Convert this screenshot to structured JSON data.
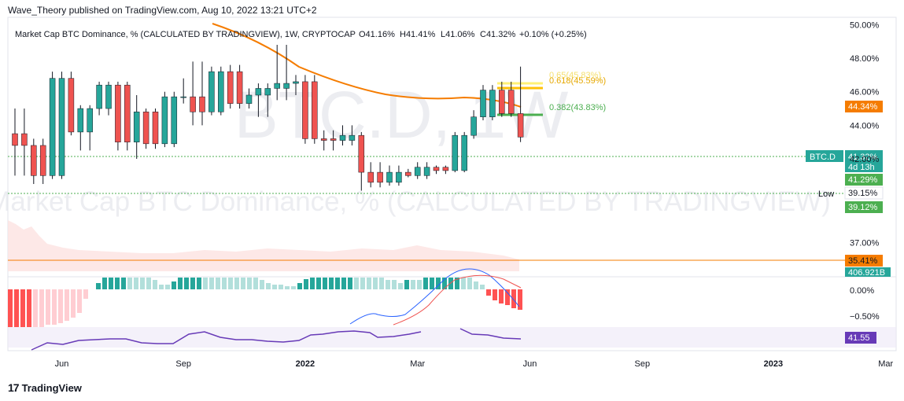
{
  "header": {
    "publisher_line": "Wave_Theory published on TradingView.com, Aug 10, 2022 13:21 UTC+2"
  },
  "legend": {
    "symbol_line": "Market Cap BTC Dominance, % (CALCULATED BY TRADINGVIEW), 1W, CRYPTOCAP",
    "open": "O41.16%",
    "high": "H41.41%",
    "low": "L41.06%",
    "close": "C41.32%",
    "change": "+0.10% (+0.25%)"
  },
  "watermark": {
    "symbol": "BTC.D, 1W",
    "description": "Market Cap BTC Dominance, % (CALCULATED BY TRADINGVIEW)"
  },
  "footer": {
    "brand": "TradingView"
  },
  "colors": {
    "up": "#26a69a",
    "down": "#ef5350",
    "ma": "#f57c00",
    "support": "#4caf50",
    "fib_618": "#ffc107",
    "fib_65": "#fff176",
    "fib_382": "#4caf50",
    "rsi": "#673ab7",
    "hline_orange": "#f57c00",
    "macd_line": "#2962ff",
    "signal_line": "#ef5350"
  },
  "chart_data": [
    {
      "type": "candlestick",
      "title": "Market Cap BTC Dominance, % (CALCULATED BY TRADINGVIEW), 1W",
      "ylim": [
        36.0,
        50.3
      ],
      "y_ticks": [
        "50.00%",
        "48.00%",
        "46.00%",
        "44.00%",
        "42.00%",
        "37.00%"
      ],
      "y_tick_values": [
        50,
        48,
        46,
        44,
        42,
        37
      ],
      "x_ticks": [
        "Jun",
        "Sep",
        "2022",
        "Mar",
        "Jun",
        "Sep",
        "2023",
        "Mar"
      ],
      "x_tick_weeks": [
        5,
        18,
        31,
        43,
        55,
        67,
        81,
        93
      ],
      "candles": [
        [
          43.5,
          45.0,
          41.0,
          42.8
        ],
        [
          42.8,
          43.2,
          40.5,
          41.0
        ],
        [
          41.0,
          47.2,
          40.8,
          46.8
        ],
        [
          46.8,
          47.2,
          43.4,
          43.6
        ],
        [
          43.6,
          45.2,
          42.5,
          45.0
        ],
        [
          45.0,
          46.6,
          44.6,
          46.4
        ],
        [
          46.4,
          46.6,
          42.5,
          43.0
        ],
        [
          43.0,
          45.8,
          42.0,
          44.8
        ],
        [
          44.8,
          45.0,
          42.6,
          42.9
        ],
        [
          42.9,
          46.0,
          42.7,
          45.7
        ],
        [
          45.7,
          46.8,
          45.3,
          45.7
        ],
        [
          45.7,
          47.8,
          44.0,
          44.8
        ],
        [
          44.8,
          47.5,
          44.6,
          47.2
        ],
        [
          47.2,
          47.6,
          45.0,
          45.3
        ],
        [
          45.3,
          46.2,
          45.0,
          45.8
        ],
        [
          45.8,
          46.5,
          44.5,
          46.2
        ],
        [
          46.2,
          48.8,
          45.5,
          46.5
        ],
        [
          46.5,
          47.0,
          45.8,
          46.6
        ],
        [
          46.6,
          47.0,
          42.9,
          43.2
        ],
        [
          43.2,
          43.7,
          42.5,
          43.1
        ],
        [
          43.1,
          44.0,
          42.8,
          43.4
        ],
        [
          43.4,
          43.6,
          40.1,
          41.2
        ],
        [
          41.2,
          41.8,
          40.3,
          40.6
        ],
        [
          40.6,
          41.6,
          40.4,
          41.2
        ],
        [
          41.2,
          41.4,
          40.9,
          41.0
        ],
        [
          41.0,
          41.8,
          40.8,
          41.5
        ],
        [
          41.5,
          41.6,
          41.1,
          41.3
        ],
        [
          41.3,
          43.6,
          41.2,
          43.4
        ],
        [
          43.4,
          44.9,
          43.2,
          44.5
        ],
        [
          44.5,
          46.4,
          44.3,
          46.1
        ],
        [
          46.1,
          46.6,
          44.5,
          44.7
        ],
        [
          44.7,
          47.5,
          43.0,
          43.3
        ]
      ]
    }
  ]
}
